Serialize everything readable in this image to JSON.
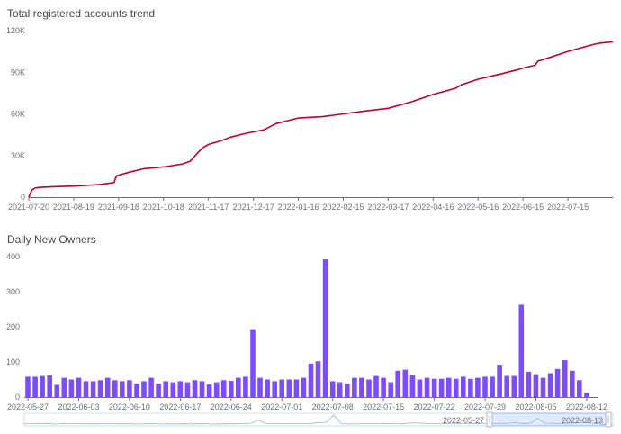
{
  "chart_data": [
    {
      "type": "line",
      "title": "Total registered accounts trend",
      "xlabel": "",
      "ylabel": "",
      "ylim": [
        0,
        120000
      ],
      "y_ticks": [
        "0",
        "30K",
        "60K",
        "90K",
        "120K"
      ],
      "y_tick_values": [
        0,
        30000,
        60000,
        90000,
        120000
      ],
      "x_tick_labels": [
        "2021-07-20",
        "2021-08-19",
        "2021-09-18",
        "2021-10-18",
        "2021-11-17",
        "2021-12-17",
        "2022-01-16",
        "2022-02-15",
        "2022-03-17",
        "2022-04-16",
        "2022-05-16",
        "2022-06-15",
        "2022-07-15"
      ],
      "grid": false,
      "color": "#c1002b",
      "series": [
        {
          "x": [
            "2021-07-20",
            "2021-07-22",
            "2021-07-24",
            "2021-07-27",
            "2021-08-05",
            "2021-08-19",
            "2021-09-05",
            "2021-09-15",
            "2021-09-16",
            "2021-09-17",
            "2021-09-25",
            "2021-10-05",
            "2021-10-20",
            "2021-10-31",
            "2021-11-05",
            "2021-11-09",
            "2021-11-13",
            "2021-11-17",
            "2021-11-25",
            "2021-12-01",
            "2021-12-10",
            "2021-12-17",
            "2021-12-24",
            "2022-01-01",
            "2022-01-16",
            "2022-02-01",
            "2022-02-15",
            "2022-03-01",
            "2022-03-17",
            "2022-04-01",
            "2022-04-16",
            "2022-05-01",
            "2022-05-05",
            "2022-05-16",
            "2022-06-01",
            "2022-06-12",
            "2022-06-15",
            "2022-06-23",
            "2022-06-25",
            "2022-07-01",
            "2022-07-15",
            "2022-07-25",
            "2022-08-01",
            "2022-08-05",
            "2022-08-10",
            "2022-08-14"
          ],
          "values": [
            0,
            5000,
            6500,
            7000,
            7500,
            8000,
            9000,
            10500,
            14000,
            15500,
            18000,
            20500,
            22000,
            24000,
            26000,
            31000,
            35500,
            38000,
            40500,
            43000,
            45500,
            47000,
            48500,
            53000,
            57000,
            58000,
            60000,
            62000,
            64000,
            68500,
            74000,
            78500,
            81000,
            85000,
            89000,
            92000,
            93000,
            95000,
            98000,
            100000,
            105000,
            108000,
            110000,
            111000,
            111500,
            112000
          ]
        }
      ]
    },
    {
      "type": "bar",
      "title": "Daily New Owners",
      "xlabel": "",
      "ylabel": "",
      "ylim": [
        0,
        400
      ],
      "y_ticks": [
        "0",
        "100",
        "200",
        "300",
        "400"
      ],
      "y_tick_values": [
        0,
        100,
        200,
        300,
        400
      ],
      "x_tick_labels": [
        "2022-05-27",
        "2022-06-03",
        "2022-06-10",
        "2022-06-17",
        "2022-06-24",
        "2022-07-01",
        "2022-07-08",
        "2022-07-15",
        "2022-07-22",
        "2022-07-29",
        "2022-08-05",
        "2022-08-12"
      ],
      "grid": false,
      "color": "#7c4dff",
      "categories": [
        "2022-05-27",
        "2022-05-28",
        "2022-05-29",
        "2022-05-30",
        "2022-05-31",
        "2022-06-01",
        "2022-06-02",
        "2022-06-03",
        "2022-06-04",
        "2022-06-05",
        "2022-06-06",
        "2022-06-07",
        "2022-06-08",
        "2022-06-09",
        "2022-06-10",
        "2022-06-11",
        "2022-06-12",
        "2022-06-13",
        "2022-06-14",
        "2022-06-15",
        "2022-06-16",
        "2022-06-17",
        "2022-06-18",
        "2022-06-19",
        "2022-06-20",
        "2022-06-21",
        "2022-06-22",
        "2022-06-23",
        "2022-06-24",
        "2022-06-25",
        "2022-06-26",
        "2022-06-27",
        "2022-06-28",
        "2022-06-29",
        "2022-06-30",
        "2022-07-01",
        "2022-07-02",
        "2022-07-03",
        "2022-07-04",
        "2022-07-05",
        "2022-07-06",
        "2022-07-07",
        "2022-07-08",
        "2022-07-09",
        "2022-07-10",
        "2022-07-11",
        "2022-07-12",
        "2022-07-13",
        "2022-07-14",
        "2022-07-15",
        "2022-07-16",
        "2022-07-17",
        "2022-07-18",
        "2022-07-19",
        "2022-07-20",
        "2022-07-21",
        "2022-07-22",
        "2022-07-23",
        "2022-07-24",
        "2022-07-25",
        "2022-07-26",
        "2022-07-27",
        "2022-07-28",
        "2022-07-29",
        "2022-07-30",
        "2022-07-31",
        "2022-08-01",
        "2022-08-02",
        "2022-08-03",
        "2022-08-04",
        "2022-08-05",
        "2022-08-06",
        "2022-08-07",
        "2022-08-08",
        "2022-08-09",
        "2022-08-10",
        "2022-08-11",
        "2022-08-12",
        "2022-08-13"
      ],
      "values": [
        58,
        58,
        60,
        62,
        35,
        55,
        50,
        55,
        45,
        45,
        48,
        55,
        48,
        45,
        48,
        38,
        45,
        55,
        38,
        45,
        42,
        45,
        42,
        48,
        45,
        36,
        42,
        48,
        46,
        55,
        58,
        193,
        55,
        50,
        45,
        50,
        50,
        50,
        55,
        95,
        102,
        392,
        45,
        42,
        38,
        55,
        55,
        50,
        60,
        55,
        42,
        75,
        78,
        62,
        50,
        55,
        52,
        52,
        55,
        52,
        58,
        52,
        55,
        58,
        58,
        92,
        60,
        60,
        263,
        72,
        65,
        55,
        68,
        80,
        105,
        75,
        48,
        12,
        0
      ]
    }
  ],
  "datazoom": {
    "start_label": "2022-05-27",
    "end_label": "2022-08-13"
  }
}
